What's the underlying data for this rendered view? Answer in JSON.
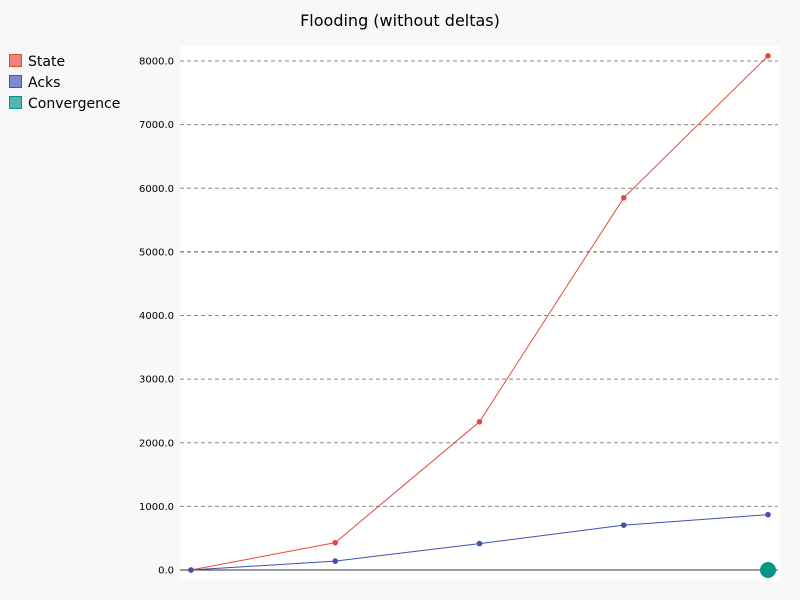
{
  "chart_data": {
    "type": "line",
    "title": "Flooding (without deltas)",
    "xlabel": "",
    "ylabel": "",
    "ylim": [
      0,
      8200
    ],
    "yticks": [
      "0.0",
      "1000.0",
      "2000.0",
      "3000.0",
      "4000.0",
      "5000.0",
      "6000.0",
      "7000.0",
      "8000.0"
    ],
    "ytick_values": [
      0,
      1000,
      2000,
      3000,
      4000,
      5000,
      6000,
      7000,
      8000
    ],
    "x": [
      0,
      1,
      2,
      3,
      4
    ],
    "grid": true,
    "legend_position": "top-left",
    "series": [
      {
        "name": "State",
        "color": "#e8473f",
        "values": [
          0,
          430,
          2330,
          5850,
          8080
        ]
      },
      {
        "name": "Acks",
        "color": "#3f51b5",
        "values": [
          0,
          140,
          415,
          705,
          870
        ]
      },
      {
        "name": "Convergence",
        "color": "#009688",
        "values": [
          null,
          null,
          null,
          null,
          0
        ]
      }
    ]
  }
}
